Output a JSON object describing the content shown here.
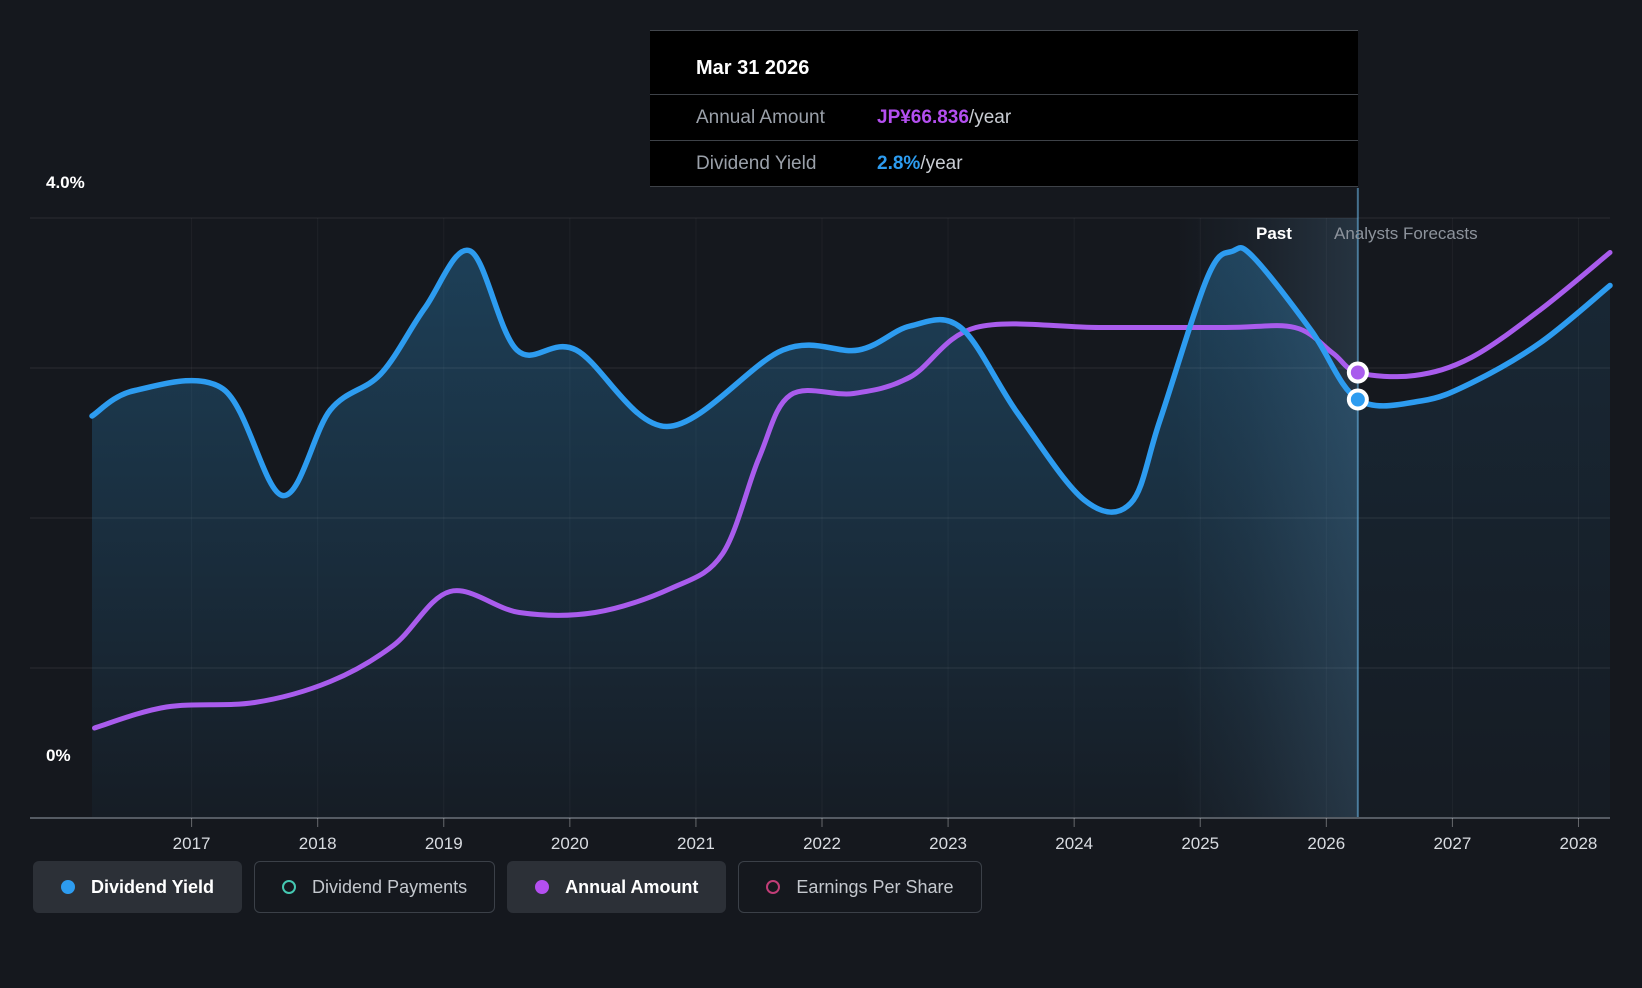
{
  "y_axis": {
    "top_label": "4.0%",
    "bottom_label": "0%"
  },
  "annotations": {
    "past_label": "Past",
    "forecast_label": "Analysts Forecasts"
  },
  "tooltip": {
    "title": "Mar 31 2026",
    "rows": [
      {
        "label": "Annual Amount",
        "value": "JP¥66.836",
        "suffix": "/year",
        "value_color": "#b44ff0"
      },
      {
        "label": "Dividend Yield",
        "value": "2.8%",
        "suffix": "/year",
        "value_color": "#2d9cf0"
      }
    ]
  },
  "legend": {
    "items": [
      {
        "label": "Dividend Yield",
        "color": "#2d9cf0",
        "style": "filled",
        "active": true
      },
      {
        "label": "Dividend Payments",
        "color": "#45c8b2",
        "style": "ring",
        "active": false
      },
      {
        "label": "Annual Amount",
        "color": "#b44ff0",
        "style": "filled",
        "active": true
      },
      {
        "label": "Earnings Per Share",
        "color": "#c13d77",
        "style": "ring",
        "active": false
      }
    ]
  },
  "chart_data": {
    "type": "line",
    "title": "Dividend yield history and analysts forecast",
    "xlim": [
      2016.21,
      2028.25
    ],
    "ylim": [
      0,
      4
    ],
    "x_ticks": [
      2017,
      2018,
      2019,
      2020,
      2021,
      2022,
      2023,
      2024,
      2025,
      2026,
      2027,
      2028
    ],
    "y_gridlines": [
      1,
      2,
      3,
      4
    ],
    "y_tick_labels": {
      "4": "4.0%",
      "0": "0%"
    },
    "grid": true,
    "legend_position": "bottom",
    "past_forecast_divider_x": 2026.25,
    "highlight_band": {
      "x_start": 2024.8,
      "x_end": 2026.25
    },
    "series": [
      {
        "name": "Dividend Yield",
        "color": "#2d9cf0",
        "unit": "%",
        "area_fill": true,
        "marker": {
          "x": 2026.25,
          "y": 2.79
        },
        "points": [
          [
            2016.21,
            2.68
          ],
          [
            2016.55,
            2.85
          ],
          [
            2017.25,
            2.86
          ],
          [
            2017.72,
            2.15
          ],
          [
            2018.1,
            2.72
          ],
          [
            2018.5,
            2.96
          ],
          [
            2018.85,
            3.4
          ],
          [
            2019.21,
            3.78
          ],
          [
            2019.58,
            3.12
          ],
          [
            2020.05,
            3.12
          ],
          [
            2020.77,
            2.61
          ],
          [
            2021.69,
            3.12
          ],
          [
            2022.29,
            3.12
          ],
          [
            2022.7,
            3.28
          ],
          [
            2023.1,
            3.27
          ],
          [
            2023.55,
            2.7
          ],
          [
            2024.08,
            2.12
          ],
          [
            2024.45,
            2.1
          ],
          [
            2024.68,
            2.65
          ],
          [
            2025.06,
            3.61
          ],
          [
            2025.26,
            3.78
          ],
          [
            2025.42,
            3.74
          ],
          [
            2025.88,
            3.25
          ],
          [
            2026.25,
            2.79
          ],
          [
            2026.75,
            2.78
          ],
          [
            2027.15,
            2.9
          ],
          [
            2027.7,
            3.17
          ],
          [
            2028.25,
            3.55
          ]
        ]
      },
      {
        "name": "Annual Amount",
        "color": "#a95ced",
        "unit": "JP¥/year (hidden scale; y values are positions on the 0-4% display axis)",
        "area_fill": false,
        "marker": {
          "x": 2026.25,
          "y": 2.97
        },
        "points": [
          [
            2016.23,
            0.6
          ],
          [
            2016.8,
            0.74
          ],
          [
            2017.5,
            0.77
          ],
          [
            2018.1,
            0.91
          ],
          [
            2018.6,
            1.15
          ],
          [
            2019.05,
            1.51
          ],
          [
            2019.6,
            1.37
          ],
          [
            2020.2,
            1.37
          ],
          [
            2020.8,
            1.53
          ],
          [
            2021.21,
            1.76
          ],
          [
            2021.5,
            2.4
          ],
          [
            2021.75,
            2.82
          ],
          [
            2022.25,
            2.83
          ],
          [
            2022.7,
            2.94
          ],
          [
            2023.22,
            3.27
          ],
          [
            2024.2,
            3.27
          ],
          [
            2025.2,
            3.27
          ],
          [
            2025.75,
            3.27
          ],
          [
            2026.05,
            3.1
          ],
          [
            2026.25,
            2.97
          ],
          [
            2026.7,
            2.95
          ],
          [
            2027.15,
            3.07
          ],
          [
            2027.7,
            3.39
          ],
          [
            2028.25,
            3.77
          ]
        ]
      }
    ]
  }
}
